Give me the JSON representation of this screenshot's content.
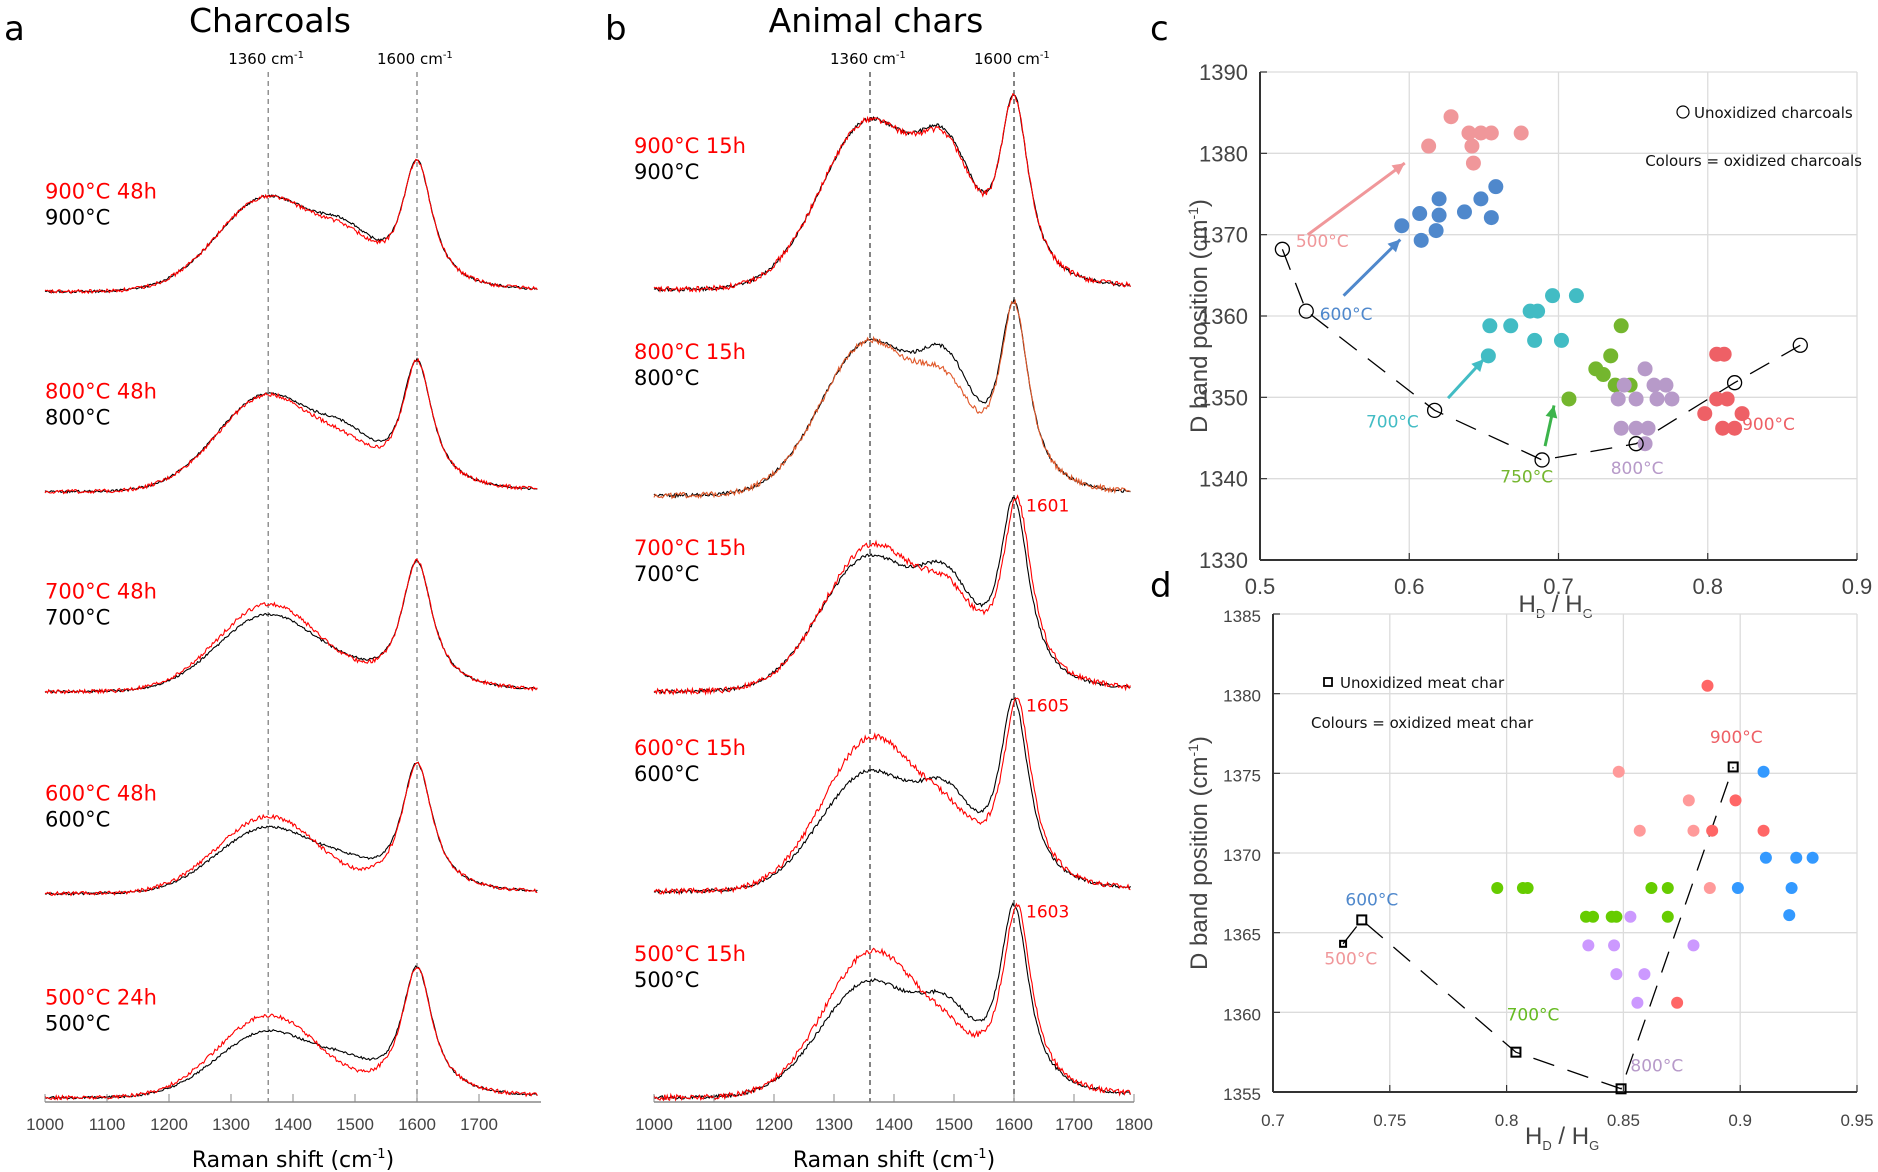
{
  "chart_data": [
    {
      "panel": "a",
      "type": "line",
      "title": "Charcoals",
      "xlabel": "Raman shift (cm-1)",
      "xlim": [
        1000,
        1800
      ],
      "xticks": [
        1000,
        1100,
        1200,
        1300,
        1400,
        1500,
        1600,
        1700
      ],
      "reference_lines": [
        {
          "x": 1360,
          "label": "1360 cm-1"
        },
        {
          "x": 1600,
          "label": "1600 cm-1"
        }
      ],
      "stacked_spectra": [
        {
          "oxidized_label": "900°C 48h",
          "unoxidized_label": "900°C",
          "D_rel": {
            "black": 0.72,
            "red": 0.72
          },
          "G_rel": {
            "black": 1.0,
            "red": 1.0
          },
          "valley_rel": {
            "black": 0.52,
            "red": 0.48
          }
        },
        {
          "oxidized_label": "800°C 48h",
          "unoxidized_label": "800°C",
          "D_rel": {
            "black": 0.74,
            "red": 0.73
          },
          "G_rel": {
            "black": 1.0,
            "red": 1.0
          },
          "valley_rel": {
            "black": 0.5,
            "red": 0.42
          }
        },
        {
          "oxidized_label": "700°C 48h",
          "unoxidized_label": "700°C",
          "D_rel": {
            "black": 0.58,
            "red": 0.66
          },
          "G_rel": {
            "black": 1.0,
            "red": 1.0
          },
          "valley_rel": {
            "black": 0.27,
            "red": 0.25
          }
        },
        {
          "oxidized_label": "600°C 48h",
          "unoxidized_label": "600°C",
          "D_rel": {
            "black": 0.5,
            "red": 0.58
          },
          "G_rel": {
            "black": 1.0,
            "red": 1.0
          },
          "valley_rel": {
            "black": 0.3,
            "red": 0.2
          }
        },
        {
          "oxidized_label": "500°C 24h",
          "unoxidized_label": "500°C",
          "D_rel": {
            "black": 0.5,
            "red": 0.62
          },
          "G_rel": {
            "black": 1.0,
            "red": 1.0
          },
          "valley_rel": {
            "black": 0.33,
            "red": 0.22
          }
        }
      ],
      "legend": {
        "red": "oxidized",
        "black": "unoxidized"
      }
    },
    {
      "panel": "b",
      "type": "line",
      "title": "Animal chars",
      "xlabel": "Raman shift (cm-1)",
      "xlim": [
        1000,
        1800
      ],
      "xticks": [
        1000,
        1100,
        1200,
        1300,
        1400,
        1500,
        1600,
        1700,
        1800
      ],
      "reference_lines": [
        {
          "x": 1360,
          "label": "1360 cm-1"
        },
        {
          "x": 1600,
          "label": "1600 cm-1"
        }
      ],
      "stacked_spectra": [
        {
          "oxidized_label": "900°C 15h",
          "unoxidized_label": "900°C",
          "peak_annotation": "",
          "D_rel": {
            "black": 0.88,
            "red": 0.88
          },
          "G_rel": {
            "black": 1.0,
            "red": 1.0
          },
          "valley_rel": {
            "black": 0.8,
            "red": 0.78
          }
        },
        {
          "oxidized_label": "800°C 15h",
          "unoxidized_label": "800°C",
          "peak_annotation": "",
          "D_rel": {
            "black": 0.8,
            "red": 0.8
          },
          "G_rel": {
            "black": 1.0,
            "red": 1.0
          },
          "valley_rel": {
            "black": 0.74,
            "red": 0.62
          }
        },
        {
          "oxidized_label": "700°C 15h",
          "unoxidized_label": "700°C",
          "peak_annotation": "1601",
          "D_rel": {
            "black": 0.7,
            "red": 0.76
          },
          "G_rel": {
            "black": 1.0,
            "red": 1.0
          },
          "valley_rel": {
            "black": 0.64,
            "red": 0.56
          }
        },
        {
          "oxidized_label": "600°C 15h",
          "unoxidized_label": "600°C",
          "peak_annotation": "1605",
          "D_rel": {
            "black": 0.62,
            "red": 0.8
          },
          "G_rel": {
            "black": 1.0,
            "red": 1.0
          },
          "valley_rel": {
            "black": 0.56,
            "red": 0.46
          }
        },
        {
          "oxidized_label": "500°C 15h",
          "unoxidized_label": "500°C",
          "peak_annotation": "1603",
          "D_rel": {
            "black": 0.6,
            "red": 0.76
          },
          "G_rel": {
            "black": 1.0,
            "red": 1.0
          },
          "valley_rel": {
            "black": 0.52,
            "red": 0.4
          }
        }
      ],
      "legend": {
        "red": "oxidized",
        "black": "unoxidized"
      }
    },
    {
      "panel": "c",
      "type": "scatter",
      "xlabel": "HD / HG",
      "ylabel": "D band position (cm-1)",
      "xlim": [
        0.5,
        0.9
      ],
      "ylim": [
        1330,
        1390
      ],
      "xticks": [
        0.5,
        0.6,
        0.7,
        0.8,
        0.9
      ],
      "yticks": [
        1330,
        1340,
        1350,
        1360,
        1370,
        1380,
        1390
      ],
      "grid": true,
      "legend": {
        "marker_label": "Unoxidized charcoals",
        "colour_label": "Colours = oxidized charcoals",
        "placement": "top-right"
      },
      "unoxidized_line": {
        "marker": "circle",
        "points": [
          [
            0.515,
            1368.2
          ],
          [
            0.531,
            1360.6
          ],
          [
            0.617,
            1348.4
          ],
          [
            0.689,
            1342.3
          ],
          [
            0.752,
            1344.3
          ],
          [
            0.818,
            1351.8
          ],
          [
            0.862,
            1356.4
          ]
        ]
      },
      "series": [
        {
          "name": "500°C",
          "color": "#f0979a",
          "points": [
            [
              0.628,
              1384.5
            ],
            [
              0.613,
              1380.9
            ],
            [
              0.64,
              1382.5
            ],
            [
              0.648,
              1382.5
            ],
            [
              0.655,
              1382.5
            ],
            [
              0.675,
              1382.5
            ],
            [
              0.642,
              1380.9
            ],
            [
              0.643,
              1378.8
            ]
          ]
        },
        {
          "name": "600°C",
          "color": "#4f88cc",
          "points": [
            [
              0.595,
              1371.1
            ],
            [
              0.607,
              1372.6
            ],
            [
              0.62,
              1374.4
            ],
            [
              0.62,
              1372.4
            ],
            [
              0.608,
              1369.3
            ],
            [
              0.618,
              1370.5
            ],
            [
              0.637,
              1372.8
            ],
            [
              0.648,
              1374.4
            ],
            [
              0.658,
              1375.9
            ],
            [
              0.655,
              1372.1
            ]
          ]
        },
        {
          "name": "700°C",
          "color": "#42bcc4",
          "points": [
            [
              0.653,
              1355.1
            ],
            [
              0.654,
              1358.8
            ],
            [
              0.668,
              1358.8
            ],
            [
              0.681,
              1360.6
            ],
            [
              0.686,
              1360.6
            ],
            [
              0.696,
              1362.5
            ],
            [
              0.712,
              1362.5
            ],
            [
              0.684,
              1357.0
            ],
            [
              0.702,
              1357.0
            ]
          ]
        },
        {
          "name": "750°C",
          "color": "#74b62e",
          "points": [
            [
              0.707,
              1349.8
            ],
            [
              0.73,
              1352.8
            ],
            [
              0.735,
              1355.1
            ],
            [
              0.742,
              1358.8
            ],
            [
              0.725,
              1353.5
            ],
            [
              0.738,
              1351.5
            ],
            [
              0.748,
              1351.5
            ]
          ]
        },
        {
          "name": "800°C",
          "color": "#b79ac9",
          "points": [
            [
              0.758,
              1353.5
            ],
            [
              0.744,
              1351.5
            ],
            [
              0.764,
              1351.5
            ],
            [
              0.772,
              1351.5
            ],
            [
              0.74,
              1349.8
            ],
            [
              0.752,
              1349.8
            ],
            [
              0.766,
              1349.8
            ],
            [
              0.776,
              1349.8
            ],
            [
              0.742,
              1346.2
            ],
            [
              0.752,
              1346.2
            ],
            [
              0.76,
              1346.2
            ],
            [
              0.758,
              1344.3
            ]
          ]
        },
        {
          "name": "900°C",
          "color": "#ee6066",
          "points": [
            [
              0.806,
              1355.3
            ],
            [
              0.811,
              1355.3
            ],
            [
              0.806,
              1349.8
            ],
            [
              0.813,
              1349.8
            ],
            [
              0.798,
              1348.0
            ],
            [
              0.81,
              1346.2
            ],
            [
              0.818,
              1346.2
            ],
            [
              0.823,
              1348.0
            ]
          ]
        }
      ],
      "annotations": [
        "500°C",
        "600°C",
        "700°C",
        "750°C",
        "800°C",
        "900°C"
      ]
    },
    {
      "panel": "d",
      "type": "scatter",
      "xlabel": "HD / HG",
      "ylabel": "D band position (cm-1)",
      "xlim": [
        0.7,
        0.95
      ],
      "ylim": [
        1355,
        1385
      ],
      "xticks": [
        0.7,
        0.75,
        0.8,
        0.85,
        0.9,
        0.95
      ],
      "yticks": [
        1355,
        1360,
        1365,
        1370,
        1375,
        1380,
        1385
      ],
      "grid": true,
      "legend": {
        "marker_label": "Unoxidized meat char",
        "colour_label": "Colours = oxidized meat char",
        "placement": "top-left"
      },
      "unoxidized_line": {
        "marker": "square",
        "points": [
          [
            0.73,
            1364.3
          ],
          [
            0.738,
            1365.8
          ],
          [
            0.804,
            1357.5
          ],
          [
            0.849,
            1355.2
          ],
          [
            0.897,
            1375.4
          ]
        ]
      },
      "series": [
        {
          "name": "500°C",
          "color": "#ff9a9a",
          "points": [
            [
              0.848,
              1375.1
            ],
            [
              0.857,
              1371.4
            ],
            [
              0.878,
              1373.3
            ],
            [
              0.88,
              1371.4
            ],
            [
              0.887,
              1367.8
            ]
          ]
        },
        {
          "name": "600°C",
          "color": "#3399ff",
          "points": [
            [
              0.91,
              1375.1
            ],
            [
              0.911,
              1369.7
            ],
            [
              0.924,
              1369.7
            ],
            [
              0.931,
              1369.7
            ],
            [
              0.899,
              1367.8
            ],
            [
              0.922,
              1367.8
            ],
            [
              0.921,
              1366.1
            ]
          ]
        },
        {
          "name": "700°C",
          "color": "#66cc00",
          "points": [
            [
              0.796,
              1367.8
            ],
            [
              0.807,
              1367.8
            ],
            [
              0.809,
              1367.8
            ],
            [
              0.862,
              1367.8
            ],
            [
              0.869,
              1367.8
            ],
            [
              0.834,
              1366.0
            ],
            [
              0.837,
              1366.0
            ],
            [
              0.845,
              1366.0
            ],
            [
              0.847,
              1366.0
            ],
            [
              0.869,
              1366.0
            ]
          ]
        },
        {
          "name": "800°C",
          "color": "#cc99ff",
          "points": [
            [
              0.853,
              1366.0
            ],
            [
              0.835,
              1364.2
            ],
            [
              0.846,
              1364.2
            ],
            [
              0.88,
              1364.2
            ],
            [
              0.847,
              1362.4
            ],
            [
              0.859,
              1362.4
            ],
            [
              0.856,
              1360.6
            ]
          ]
        },
        {
          "name": "900°C",
          "color": "#ff6666",
          "points": [
            [
              0.886,
              1380.5
            ],
            [
              0.898,
              1373.3
            ],
            [
              0.888,
              1371.4
            ],
            [
              0.91,
              1371.4
            ],
            [
              0.873,
              1360.6
            ]
          ]
        }
      ],
      "annotations": [
        "500°C",
        "600°C",
        "700°C",
        "800°C",
        "900°C"
      ]
    }
  ],
  "labels": {
    "panel_a": "a",
    "panel_b": "b",
    "panel_c": "c",
    "panel_d": "d",
    "title_a": "Charcoals",
    "title_b": "Animal chars",
    "ref_1360": "1360 cm",
    "ref_1600": "1600 cm",
    "ref_sup": "-1",
    "raman_xlabel": "Raman shift (cm",
    "raman_xlabel_sup": "-1",
    "raman_xlabel_end": ")",
    "ylabel_c": "D band position (cm",
    "ylabel_sup": "-1",
    "ylabel_end": ")",
    "hd": "H",
    "hd_sub": "D",
    "slash": " / H",
    "hg_sub": "G",
    "legend_c_marker": "Unoxidized charcoals",
    "legend_c_colour": "Colours = oxidized charcoals",
    "legend_d_marker": "Unoxidized meat char",
    "legend_d_colour": "Colours = oxidized meat char"
  }
}
